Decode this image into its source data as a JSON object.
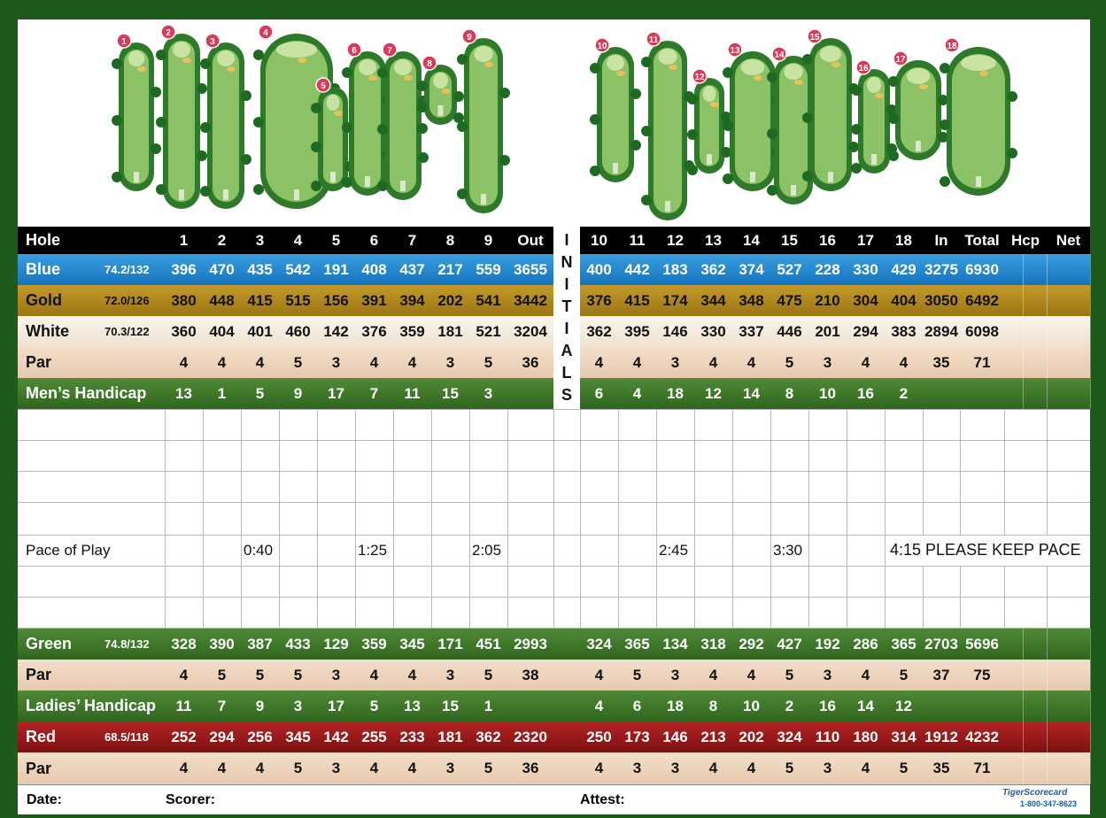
{
  "holes_front": [
    "1",
    "2",
    "3",
    "4",
    "5",
    "6",
    "7",
    "8",
    "9"
  ],
  "holes_back": [
    "10",
    "11",
    "12",
    "13",
    "14",
    "15",
    "16",
    "17",
    "18"
  ],
  "header": {
    "hole": "Hole",
    "out": "Out",
    "in": "In",
    "total": "Total",
    "hcp": "Hcp",
    "net": "Net"
  },
  "initials_letters": [
    "I",
    "N",
    "I",
    "T",
    "I",
    "A",
    "L",
    "S"
  ],
  "rows": {
    "blue": {
      "label": "Blue",
      "rating": "74.2/132",
      "front": [
        "396",
        "470",
        "435",
        "542",
        "191",
        "408",
        "437",
        "217",
        "559"
      ],
      "out": "3655",
      "back": [
        "400",
        "442",
        "183",
        "362",
        "374",
        "527",
        "228",
        "330",
        "429"
      ],
      "in": "3275",
      "total": "6930"
    },
    "gold": {
      "label": "Gold",
      "rating": "72.0/126",
      "front": [
        "380",
        "448",
        "415",
        "515",
        "156",
        "391",
        "394",
        "202",
        "541"
      ],
      "out": "3442",
      "back": [
        "376",
        "415",
        "174",
        "344",
        "348",
        "475",
        "210",
        "304",
        "404"
      ],
      "in": "3050",
      "total": "6492"
    },
    "white": {
      "label": "White",
      "rating": "70.3/122",
      "front": [
        "360",
        "404",
        "401",
        "460",
        "142",
        "376",
        "359",
        "181",
        "521"
      ],
      "out": "3204",
      "back": [
        "362",
        "395",
        "146",
        "330",
        "337",
        "446",
        "201",
        "294",
        "383"
      ],
      "in": "2894",
      "total": "6098"
    },
    "par_men": {
      "label": "Par",
      "front": [
        "4",
        "4",
        "4",
        "5",
        "3",
        "4",
        "4",
        "3",
        "5"
      ],
      "out": "36",
      "back": [
        "4",
        "4",
        "3",
        "4",
        "4",
        "5",
        "3",
        "4",
        "4"
      ],
      "in": "35",
      "total": "71"
    },
    "mens_hcp": {
      "label": "Men’s Handicap",
      "front": [
        "13",
        "1",
        "5",
        "9",
        "17",
        "7",
        "11",
        "15",
        "3"
      ],
      "back": [
        "6",
        "4",
        "18",
        "12",
        "14",
        "8",
        "10",
        "16",
        "2"
      ]
    },
    "green": {
      "label": "Green",
      "rating": "74.8/132",
      "front": [
        "328",
        "390",
        "387",
        "433",
        "129",
        "359",
        "345",
        "171",
        "451"
      ],
      "out": "2993",
      "back": [
        "324",
        "365",
        "134",
        "318",
        "292",
        "427",
        "192",
        "286",
        "365"
      ],
      "in": "2703",
      "total": "5696"
    },
    "par_ladies": {
      "label": "Par",
      "front": [
        "4",
        "5",
        "5",
        "5",
        "3",
        "4",
        "4",
        "3",
        "5"
      ],
      "out": "38",
      "back": [
        "4",
        "5",
        "3",
        "4",
        "4",
        "5",
        "3",
        "4",
        "5"
      ],
      "in": "37",
      "total": "75"
    },
    "ladies_hcp": {
      "label": "Ladies’ Handicap",
      "front": [
        "11",
        "7",
        "9",
        "3",
        "17",
        "5",
        "13",
        "15",
        "1"
      ],
      "back": [
        "4",
        "6",
        "18",
        "8",
        "10",
        "2",
        "16",
        "14",
        "12"
      ]
    },
    "red": {
      "label": "Red",
      "rating": "68.5/118",
      "front": [
        "252",
        "294",
        "256",
        "345",
        "142",
        "255",
        "233",
        "181",
        "362"
      ],
      "out": "2320",
      "back": [
        "250",
        "173",
        "146",
        "213",
        "202",
        "324",
        "110",
        "180",
        "314"
      ],
      "in": "1912",
      "total": "4232"
    },
    "par_red": {
      "label": "Par",
      "front": [
        "4",
        "4",
        "4",
        "5",
        "3",
        "4",
        "4",
        "3",
        "5"
      ],
      "out": "36",
      "back": [
        "4",
        "3",
        "3",
        "4",
        "4",
        "5",
        "3",
        "4",
        "5"
      ],
      "in": "35",
      "total": "71"
    }
  },
  "pace": {
    "label": "Pace of Play",
    "h3": "0:40",
    "h6": "1:25",
    "h9": "2:05",
    "h12": "2:45",
    "h15": "3:30",
    "final": "4:15 PLEASE KEEP PACE"
  },
  "footer": {
    "date": "Date:",
    "scorer": "Scorer:",
    "attest": "Attest:",
    "brand": "TigerScorecard",
    "phone": "1-800-347-8623"
  },
  "colors": {
    "border": "#1f5a1d",
    "blue": "#1f86d0",
    "gold": "#b08a1c",
    "green": "#3e7a2a",
    "red": "#a01a1a",
    "pin": "#d83a5a"
  }
}
